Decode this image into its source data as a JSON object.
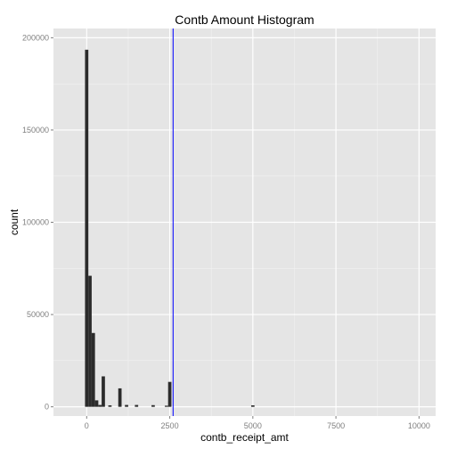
{
  "chart_data": {
    "type": "bar",
    "title": "Contb Amount Histogram",
    "xlabel": "contb_receipt_amt",
    "ylabel": "count",
    "xlim": [
      -1000,
      10500
    ],
    "ylim": [
      -5000,
      205000
    ],
    "x_ticks": [
      0,
      2500,
      5000,
      7500,
      10000
    ],
    "x_tick_labels": [
      "0",
      "2500",
      "5000",
      "7500",
      "10000"
    ],
    "y_ticks": [
      0,
      50000,
      100000,
      150000,
      200000
    ],
    "y_tick_labels": [
      "0",
      "50000",
      "100000",
      "150000",
      "200000"
    ],
    "bin_width": 100,
    "bins": [
      {
        "x": 0,
        "count": 193500
      },
      {
        "x": 100,
        "count": 71000
      },
      {
        "x": 200,
        "count": 40000
      },
      {
        "x": 300,
        "count": 3500
      },
      {
        "x": 400,
        "count": 1000
      },
      {
        "x": 500,
        "count": 16500
      },
      {
        "x": 700,
        "count": 800
      },
      {
        "x": 1000,
        "count": 10000
      },
      {
        "x": 1200,
        "count": 1000
      },
      {
        "x": 1500,
        "count": 1000
      },
      {
        "x": 2000,
        "count": 900
      },
      {
        "x": 2400,
        "count": 600
      },
      {
        "x": 2500,
        "count": 13500
      },
      {
        "x": 5000,
        "count": 800
      }
    ],
    "vline": {
      "x": 2600,
      "color": "#0000ff"
    },
    "colors": {
      "panel": "#e5e5e5",
      "grid_major": "#ffffff",
      "grid_minor": "#f2f2f2",
      "bar": "#2b2b2b"
    },
    "grid": true
  }
}
